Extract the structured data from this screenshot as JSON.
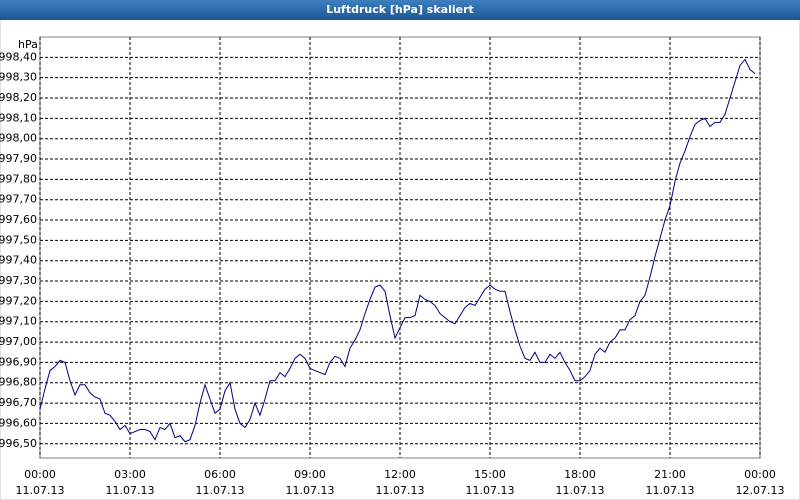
{
  "chart_data": {
    "type": "line",
    "title": "Luftdruck [hPa] skaliert",
    "y_unit": "hPa",
    "x": [
      0,
      10,
      20,
      30,
      40,
      50,
      60,
      70,
      80,
      90,
      100,
      110,
      120,
      130,
      140,
      150,
      160,
      170,
      180,
      190,
      200,
      210,
      220,
      230,
      240,
      250,
      260,
      270,
      280,
      290,
      300,
      310,
      320,
      330,
      340,
      350,
      360,
      370,
      380,
      390,
      400,
      410,
      420,
      430,
      440,
      450,
      460,
      470,
      480,
      490,
      500,
      510,
      520,
      530,
      540,
      550,
      560,
      570,
      580,
      590,
      600,
      610,
      620,
      630,
      640,
      650,
      660,
      670,
      680,
      690,
      700,
      710,
      720,
      730,
      740,
      750,
      760,
      770,
      780,
      790,
      800,
      810,
      820,
      830,
      840,
      850,
      860,
      870,
      880,
      890,
      900,
      910,
      920,
      930,
      940,
      950,
      960,
      970,
      980,
      990,
      1000,
      1010,
      1020,
      1030,
      1040,
      1050,
      1060,
      1070,
      1080,
      1090,
      1100,
      1110,
      1120,
      1130,
      1140,
      1150,
      1160,
      1170,
      1180,
      1190,
      1200,
      1210,
      1220,
      1230,
      1240,
      1250,
      1260,
      1270,
      1280,
      1290,
      1300,
      1310,
      1320,
      1330,
      1340,
      1350,
      1360,
      1370,
      1380,
      1390,
      1400,
      1410,
      1420,
      1430
    ],
    "series": [
      {
        "color": "#000080",
        "values": [
          996.67,
          996.77,
          996.86,
          996.88,
          996.91,
          996.9,
          996.81,
          996.74,
          996.79,
          996.79,
          996.75,
          996.73,
          996.72,
          996.65,
          996.64,
          996.61,
          996.57,
          996.59,
          996.55,
          996.56,
          996.57,
          996.57,
          996.56,
          996.52,
          996.58,
          996.57,
          996.6,
          996.53,
          996.54,
          996.51,
          996.52,
          996.59,
          996.7,
          996.79,
          996.72,
          996.65,
          996.67,
          996.76,
          996.8,
          996.67,
          996.6,
          996.58,
          996.62,
          996.7,
          996.64,
          996.72,
          996.81,
          996.81,
          996.85,
          996.83,
          996.87,
          996.92,
          996.94,
          996.92,
          996.87,
          996.86,
          996.85,
          996.84,
          996.9,
          996.93,
          996.92,
          996.88,
          996.97,
          997.01,
          997.06,
          997.14,
          997.21,
          997.27,
          997.28,
          997.25,
          997.13,
          997.02,
          997.07,
          997.12,
          997.12,
          997.13,
          997.23,
          997.21,
          997.2,
          997.18,
          997.14,
          997.12,
          997.1,
          997.09,
          997.13,
          997.17,
          997.19,
          997.18,
          997.22,
          997.26,
          997.28,
          997.26,
          997.25,
          997.25,
          997.15,
          997.06,
          996.98,
          996.92,
          996.91,
          996.95,
          996.9,
          996.9,
          996.94,
          996.92,
          996.95,
          996.9,
          996.86,
          996.81,
          996.81,
          996.83,
          996.86,
          996.94,
          996.97,
          996.95,
          997.0,
          997.02,
          997.06,
          997.06,
          997.11,
          997.13,
          997.2,
          997.23,
          997.32,
          997.42,
          997.51,
          997.6,
          997.67,
          997.79,
          997.88,
          997.94,
          998.01,
          998.07,
          998.09,
          998.1,
          998.06,
          998.08,
          998.08,
          998.12,
          998.2,
          998.28,
          998.36,
          998.39,
          998.34,
          998.32
        ]
      }
    ],
    "xlim": [
      0,
      1440
    ],
    "xticks": [
      {
        "value": 0,
        "label": [
          "00:00",
          "11.07.13"
        ]
      },
      {
        "value": 180,
        "label": [
          "03:00",
          "11.07.13"
        ]
      },
      {
        "value": 360,
        "label": [
          "06:00",
          "11.07.13"
        ]
      },
      {
        "value": 540,
        "label": [
          "09:00",
          "11.07.13"
        ]
      },
      {
        "value": 720,
        "label": [
          "12:00",
          "11.07.13"
        ]
      },
      {
        "value": 900,
        "label": [
          "15:00",
          "11.07.13"
        ]
      },
      {
        "value": 1080,
        "label": [
          "18:00",
          "11.07.13"
        ]
      },
      {
        "value": 1260,
        "label": [
          "21:00",
          "11.07.13"
        ]
      },
      {
        "value": 1440,
        "label": [
          "00:00",
          "12.07.13"
        ]
      }
    ],
    "ylim": [
      996.43,
      998.5
    ],
    "yticks": [
      {
        "value": 996.5,
        "label": "996,50"
      },
      {
        "value": 996.6,
        "label": "996,60"
      },
      {
        "value": 996.7,
        "label": "996,70"
      },
      {
        "value": 996.8,
        "label": "996,80"
      },
      {
        "value": 996.9,
        "label": "996,90"
      },
      {
        "value": 997.0,
        "label": "997,00"
      },
      {
        "value": 997.1,
        "label": "997,10"
      },
      {
        "value": 997.2,
        "label": "997,20"
      },
      {
        "value": 997.3,
        "label": "997,30"
      },
      {
        "value": 997.4,
        "label": "997,40"
      },
      {
        "value": 997.5,
        "label": "997,50"
      },
      {
        "value": 997.6,
        "label": "997,60"
      },
      {
        "value": 997.7,
        "label": "997,70"
      },
      {
        "value": 997.8,
        "label": "997,80"
      },
      {
        "value": 997.9,
        "label": "997,90"
      },
      {
        "value": 998.0,
        "label": "998,00"
      },
      {
        "value": 998.1,
        "label": "998,10"
      },
      {
        "value": 998.2,
        "label": "998,20"
      },
      {
        "value": 998.3,
        "label": "998,30"
      },
      {
        "value": 998.4,
        "label": "998,40"
      }
    ],
    "grid": true
  }
}
